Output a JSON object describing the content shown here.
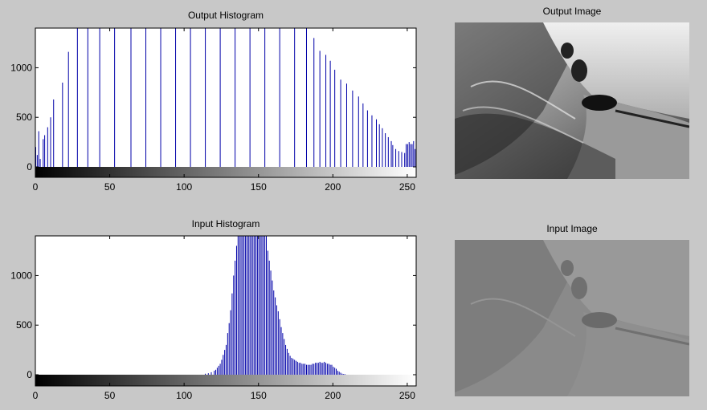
{
  "chart_data": [
    {
      "type": "bar",
      "title": "Output Histogram",
      "xlim": [
        0,
        256
      ],
      "ylim": [
        0,
        1400
      ],
      "xticks": [
        0,
        50,
        100,
        150,
        200,
        250
      ],
      "yticks": [
        0,
        500,
        1000
      ],
      "colorbar": "grayscale",
      "bins": [
        [
          0,
          200
        ],
        [
          1,
          120
        ],
        [
          2,
          360
        ],
        [
          3,
          80
        ],
        [
          5,
          280
        ],
        [
          6,
          320
        ],
        [
          8,
          400
        ],
        [
          10,
          500
        ],
        [
          12,
          680
        ],
        [
          18,
          850
        ],
        [
          22,
          1160
        ],
        [
          28,
          1400
        ],
        [
          35,
          1400
        ],
        [
          43,
          1400
        ],
        [
          53,
          1400
        ],
        [
          64,
          1400
        ],
        [
          74,
          1400
        ],
        [
          84,
          1400
        ],
        [
          94,
          1400
        ],
        [
          104,
          1400
        ],
        [
          114,
          1400
        ],
        [
          124,
          1400
        ],
        [
          134,
          1400
        ],
        [
          144,
          1400
        ],
        [
          154,
          1400
        ],
        [
          164,
          1400
        ],
        [
          174,
          1400
        ],
        [
          182,
          1400
        ],
        [
          187,
          1300
        ],
        [
          191,
          1170
        ],
        [
          195,
          1130
        ],
        [
          198,
          1070
        ],
        [
          201,
          980
        ],
        [
          205,
          880
        ],
        [
          209,
          840
        ],
        [
          213,
          770
        ],
        [
          217,
          710
        ],
        [
          220,
          640
        ],
        [
          223,
          570
        ],
        [
          226,
          520
        ],
        [
          229,
          480
        ],
        [
          231,
          430
        ],
        [
          233,
          390
        ],
        [
          235,
          340
        ],
        [
          237,
          300
        ],
        [
          239,
          260
        ],
        [
          240,
          220
        ],
        [
          242,
          180
        ],
        [
          244,
          160
        ],
        [
          246,
          150
        ],
        [
          248,
          140
        ],
        [
          249,
          230
        ],
        [
          250,
          230
        ],
        [
          251,
          250
        ],
        [
          252,
          230
        ],
        [
          253,
          230
        ],
        [
          254,
          260
        ],
        [
          255,
          180
        ]
      ]
    },
    {
      "type": "bar",
      "title": "Input Histogram",
      "xlim": [
        0,
        256
      ],
      "ylim": [
        0,
        1400
      ],
      "xticks": [
        0,
        50,
        100,
        150,
        200,
        250
      ],
      "yticks": [
        0,
        500,
        1000
      ],
      "colorbar": "grayscale",
      "bins": [
        [
          114,
          10
        ],
        [
          116,
          15
        ],
        [
          118,
          25
        ],
        [
          120,
          40
        ],
        [
          121,
          50
        ],
        [
          122,
          70
        ],
        [
          123,
          90
        ],
        [
          124,
          110
        ],
        [
          125,
          150
        ],
        [
          126,
          200
        ],
        [
          127,
          250
        ],
        [
          128,
          300
        ],
        [
          129,
          420
        ],
        [
          130,
          520
        ],
        [
          131,
          650
        ],
        [
          132,
          820
        ],
        [
          133,
          1000
        ],
        [
          134,
          1150
        ],
        [
          135,
          1300
        ],
        [
          136,
          1400
        ],
        [
          137,
          1400
        ],
        [
          138,
          1400
        ],
        [
          139,
          1400
        ],
        [
          140,
          1400
        ],
        [
          141,
          1400
        ],
        [
          142,
          1400
        ],
        [
          143,
          1400
        ],
        [
          144,
          1400
        ],
        [
          145,
          1400
        ],
        [
          146,
          1400
        ],
        [
          147,
          1400
        ],
        [
          148,
          1400
        ],
        [
          149,
          1400
        ],
        [
          150,
          1400
        ],
        [
          151,
          1400
        ],
        [
          152,
          1400
        ],
        [
          153,
          1400
        ],
        [
          154,
          1400
        ],
        [
          155,
          1400
        ],
        [
          156,
          1250
        ],
        [
          157,
          1150
        ],
        [
          158,
          1050
        ],
        [
          159,
          950
        ],
        [
          160,
          850
        ],
        [
          161,
          780
        ],
        [
          162,
          700
        ],
        [
          163,
          640
        ],
        [
          164,
          560
        ],
        [
          165,
          480
        ],
        [
          166,
          420
        ],
        [
          167,
          360
        ],
        [
          168,
          300
        ],
        [
          169,
          260
        ],
        [
          170,
          220
        ],
        [
          171,
          190
        ],
        [
          172,
          170
        ],
        [
          173,
          160
        ],
        [
          174,
          150
        ],
        [
          175,
          140
        ],
        [
          176,
          130
        ],
        [
          177,
          120
        ],
        [
          178,
          120
        ],
        [
          179,
          110
        ],
        [
          180,
          110
        ],
        [
          181,
          110
        ],
        [
          182,
          100
        ],
        [
          183,
          100
        ],
        [
          184,
          100
        ],
        [
          185,
          100
        ],
        [
          186,
          110
        ],
        [
          187,
          110
        ],
        [
          188,
          120
        ],
        [
          189,
          120
        ],
        [
          190,
          120
        ],
        [
          191,
          130
        ],
        [
          192,
          120
        ],
        [
          193,
          120
        ],
        [
          194,
          130
        ],
        [
          195,
          120
        ],
        [
          196,
          110
        ],
        [
          197,
          110
        ],
        [
          198,
          100
        ],
        [
          199,
          100
        ],
        [
          200,
          80
        ],
        [
          201,
          70
        ],
        [
          202,
          60
        ],
        [
          203,
          40
        ],
        [
          204,
          30
        ],
        [
          205,
          20
        ],
        [
          206,
          10
        ],
        [
          207,
          8
        ],
        [
          208,
          5
        ]
      ]
    }
  ],
  "images": {
    "output_title": "Output Image",
    "input_title": "Input Image"
  }
}
